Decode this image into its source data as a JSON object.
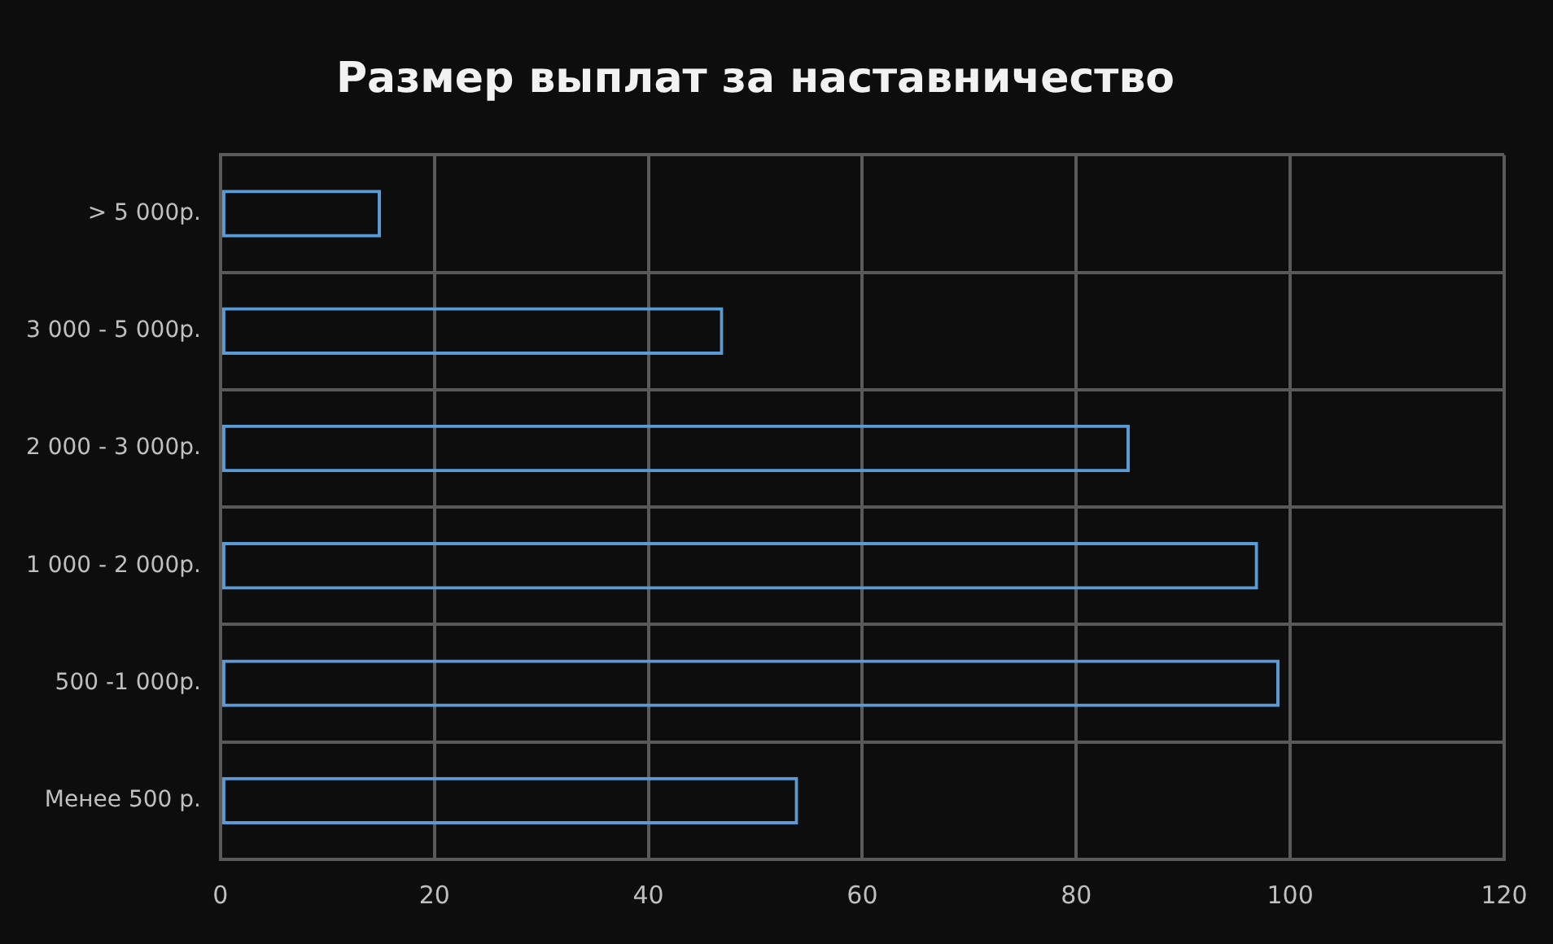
{
  "chart_data": {
    "type": "bar",
    "orientation": "horizontal",
    "title": "Размер выплат за наставничество",
    "categories": [
      "> 5 000р.",
      "3 000 - 5 000р.",
      "2 000 - 3 000р.",
      "1 000 - 2 000р.",
      "500 -1 000р.",
      "Менее 500 р."
    ],
    "values": [
      15,
      47,
      85,
      97,
      99,
      54
    ],
    "color": "#5b9bd5",
    "xlim": [
      0,
      120
    ],
    "xticks": [
      0,
      20,
      40,
      60,
      80,
      100,
      120
    ],
    "grid": true
  }
}
